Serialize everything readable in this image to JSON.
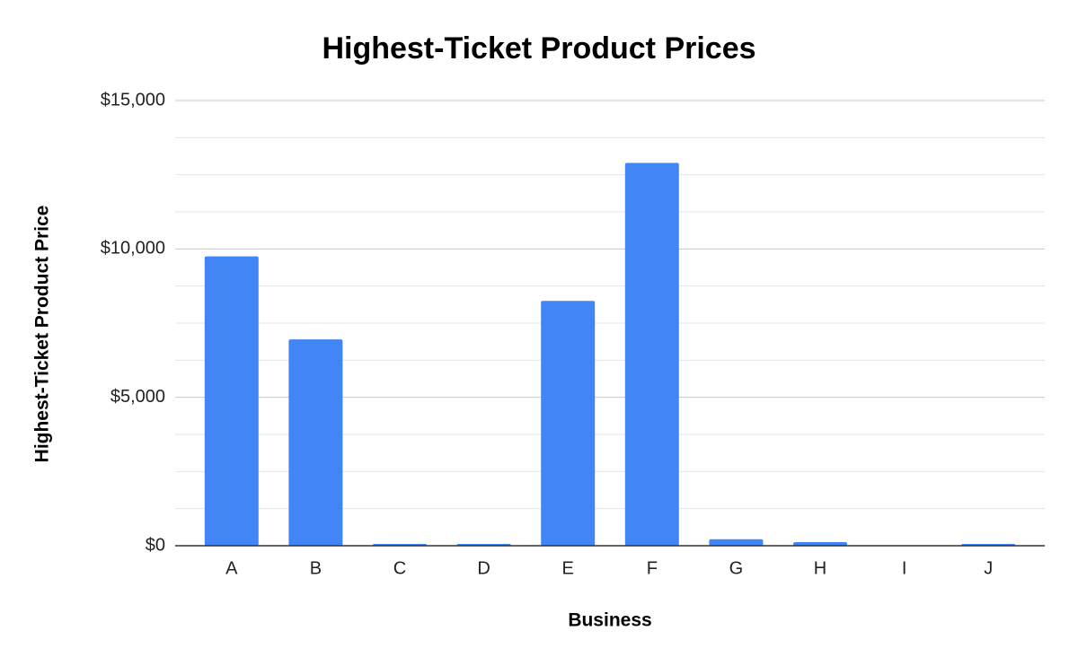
{
  "chart_data": {
    "type": "bar",
    "title": "Highest-Ticket Product Prices",
    "x_label": "Business",
    "y_label": "Highest-Ticket Product Price",
    "categories": [
      "A",
      "B",
      "C",
      "D",
      "E",
      "F",
      "G",
      "H",
      "I",
      "J"
    ],
    "values": [
      9750,
      6950,
      60,
      60,
      8250,
      12900,
      220,
      120,
      0,
      60
    ],
    "color": "#4285f4",
    "ylim": [
      0,
      15000
    ],
    "yticks": [
      {
        "value": 0,
        "label": "$0"
      },
      {
        "value": 5000,
        "label": "$5,000"
      },
      {
        "value": 10000,
        "label": "$10,000"
      },
      {
        "value": 15000,
        "label": "$15,000"
      }
    ],
    "minor_yticks": [
      1250,
      2500,
      3750,
      6250,
      7500,
      8750,
      11250,
      12500,
      13750
    ],
    "grid": true
  }
}
